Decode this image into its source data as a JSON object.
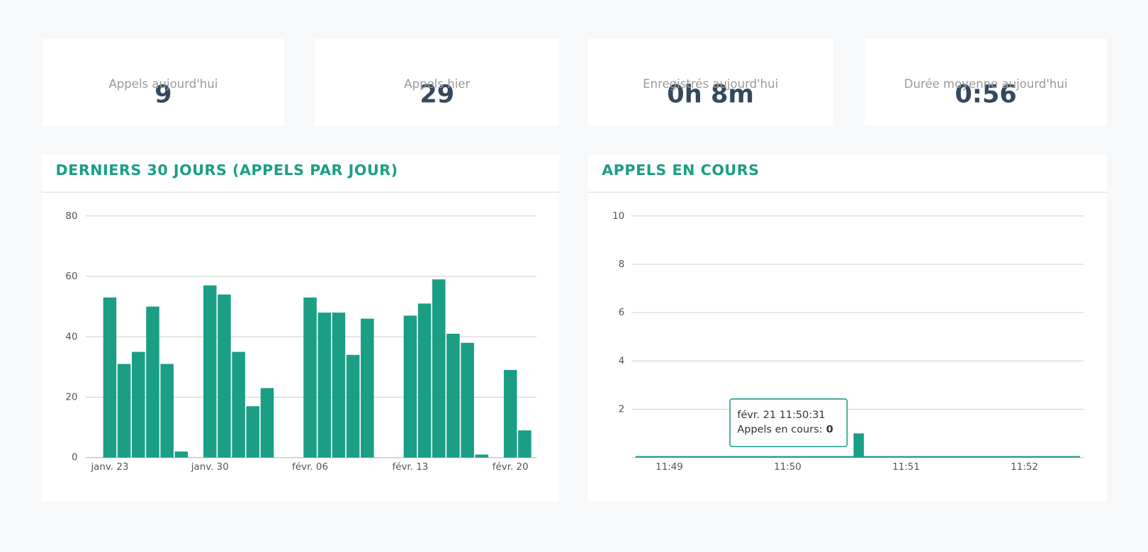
{
  "stats": [
    {
      "value": "9",
      "label": "Appels aujourd'hui"
    },
    {
      "value": "29",
      "label": "Appels hier"
    },
    {
      "value": "0h 8m",
      "label": "Enregistrés aujourd'hui"
    },
    {
      "value": "0:56",
      "label": "Durée moyenne aujourd'hui"
    }
  ],
  "chart_data": [
    {
      "type": "bar",
      "title": "DERNIERS 30 JOURS (APPELS PAR JOUR)",
      "color": "#1a9e84",
      "categories": [
        "janv. 23",
        null,
        null,
        null,
        null,
        null,
        null,
        "janv. 30",
        null,
        null,
        null,
        null,
        null,
        null,
        "févr. 06",
        null,
        null,
        null,
        null,
        null,
        null,
        "févr. 13",
        null,
        null,
        null,
        null,
        null,
        null,
        "févr. 20",
        null
      ],
      "values": [
        53,
        31,
        35,
        50,
        31,
        2,
        0,
        57,
        54,
        35,
        17,
        23,
        0,
        0,
        53,
        48,
        48,
        34,
        46,
        0,
        0,
        47,
        51,
        59,
        41,
        38,
        1,
        0,
        29,
        9
      ],
      "ylim": [
        0,
        80
      ],
      "yticks": [
        0,
        20,
        40,
        60,
        80
      ],
      "grid": true
    },
    {
      "type": "column",
      "title": "APPELS EN COURS",
      "color": "#1a9e84",
      "x": [
        "11:50:31",
        "11:50:36"
      ],
      "values": [
        0,
        1
      ],
      "xlim": [
        "11:48:41",
        "11:52:30"
      ],
      "xticks": [
        "11:49",
        "11:50",
        "11:51",
        "11:52"
      ],
      "ylim": [
        0,
        10
      ],
      "yticks": [
        2,
        4,
        6,
        8,
        10
      ],
      "grid": true,
      "tooltip": {
        "title": "févr. 21 11:50:31",
        "label": "Appels en cours:",
        "value": 0
      }
    }
  ]
}
